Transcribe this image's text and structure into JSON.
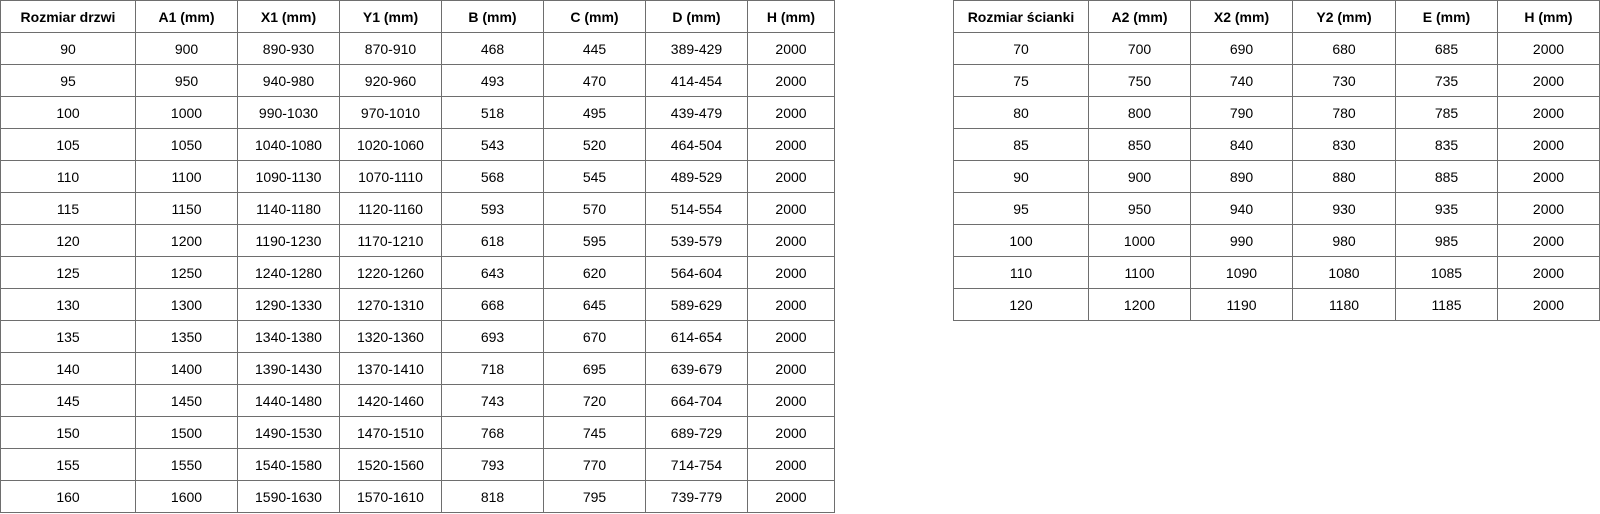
{
  "door_table": {
    "headers": [
      "Rozmiar drzwi",
      "A1 (mm)",
      "X1 (mm)",
      "Y1 (mm)",
      "B (mm)",
      "C (mm)",
      "D (mm)",
      "H (mm)"
    ],
    "rows": [
      [
        "90",
        "900",
        "890-930",
        "870-910",
        "468",
        "445",
        "389-429",
        "2000"
      ],
      [
        "95",
        "950",
        "940-980",
        "920-960",
        "493",
        "470",
        "414-454",
        "2000"
      ],
      [
        "100",
        "1000",
        "990-1030",
        "970-1010",
        "518",
        "495",
        "439-479",
        "2000"
      ],
      [
        "105",
        "1050",
        "1040-1080",
        "1020-1060",
        "543",
        "520",
        "464-504",
        "2000"
      ],
      [
        "110",
        "1100",
        "1090-1130",
        "1070-1110",
        "568",
        "545",
        "489-529",
        "2000"
      ],
      [
        "115",
        "1150",
        "1140-1180",
        "1120-1160",
        "593",
        "570",
        "514-554",
        "2000"
      ],
      [
        "120",
        "1200",
        "1190-1230",
        "1170-1210",
        "618",
        "595",
        "539-579",
        "2000"
      ],
      [
        "125",
        "1250",
        "1240-1280",
        "1220-1260",
        "643",
        "620",
        "564-604",
        "2000"
      ],
      [
        "130",
        "1300",
        "1290-1330",
        "1270-1310",
        "668",
        "645",
        "589-629",
        "2000"
      ],
      [
        "135",
        "1350",
        "1340-1380",
        "1320-1360",
        "693",
        "670",
        "614-654",
        "2000"
      ],
      [
        "140",
        "1400",
        "1390-1430",
        "1370-1410",
        "718",
        "695",
        "639-679",
        "2000"
      ],
      [
        "145",
        "1450",
        "1440-1480",
        "1420-1460",
        "743",
        "720",
        "664-704",
        "2000"
      ],
      [
        "150",
        "1500",
        "1490-1530",
        "1470-1510",
        "768",
        "745",
        "689-729",
        "2000"
      ],
      [
        "155",
        "1550",
        "1540-1580",
        "1520-1560",
        "793",
        "770",
        "714-754",
        "2000"
      ],
      [
        "160",
        "1600",
        "1590-1630",
        "1570-1610",
        "818",
        "795",
        "739-779",
        "2000"
      ]
    ]
  },
  "wall_table": {
    "headers": [
      "Rozmiar ścianki",
      "A2 (mm)",
      "X2 (mm)",
      "Y2 (mm)",
      "E (mm)",
      "H (mm)"
    ],
    "rows": [
      [
        "70",
        "700",
        "690",
        "680",
        "685",
        "2000"
      ],
      [
        "75",
        "750",
        "740",
        "730",
        "735",
        "2000"
      ],
      [
        "80",
        "800",
        "790",
        "780",
        "785",
        "2000"
      ],
      [
        "85",
        "850",
        "840",
        "830",
        "835",
        "2000"
      ],
      [
        "90",
        "900",
        "890",
        "880",
        "885",
        "2000"
      ],
      [
        "95",
        "950",
        "940",
        "930",
        "935",
        "2000"
      ],
      [
        "100",
        "1000",
        "990",
        "980",
        "985",
        "2000"
      ],
      [
        "110",
        "1100",
        "1090",
        "1080",
        "1085",
        "2000"
      ],
      [
        "120",
        "1200",
        "1190",
        "1180",
        "1185",
        "2000"
      ]
    ]
  }
}
